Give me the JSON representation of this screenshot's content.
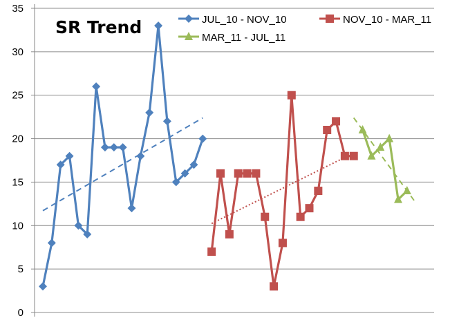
{
  "chart_data": {
    "type": "line",
    "title": "SR Trend",
    "xlabel": "",
    "ylabel": "",
    "ylim": [
      0,
      35
    ],
    "yticks": [
      0,
      5,
      10,
      15,
      20,
      25,
      30,
      35
    ],
    "grid": true,
    "legend_position": "top",
    "x_tick_labels": false,
    "series": [
      {
        "name": "JUL_10 - NOV_10",
        "color": "#4F81BD",
        "marker": "diamond",
        "trendline": "linear-dashed",
        "start_index": 0,
        "values": [
          3,
          8,
          17,
          18,
          10,
          9,
          26,
          19,
          19,
          19,
          12,
          18,
          23,
          33,
          22,
          15,
          16,
          17,
          20
        ]
      },
      {
        "name": "NOV_10 - MAR_11",
        "color": "#C0504D",
        "marker": "square",
        "trendline": "linear-dotted",
        "start_index": 19,
        "values": [
          7,
          16,
          9,
          16,
          16,
          16,
          11,
          3,
          8,
          25,
          11,
          12,
          14,
          21,
          22,
          18,
          18
        ]
      },
      {
        "name": "MAR_11 - JUL_11",
        "color": "#9BBB59",
        "marker": "triangle",
        "trendline": "linear-dashed",
        "start_index": 36,
        "values": [
          21,
          18,
          19,
          20,
          13,
          14
        ]
      }
    ]
  }
}
